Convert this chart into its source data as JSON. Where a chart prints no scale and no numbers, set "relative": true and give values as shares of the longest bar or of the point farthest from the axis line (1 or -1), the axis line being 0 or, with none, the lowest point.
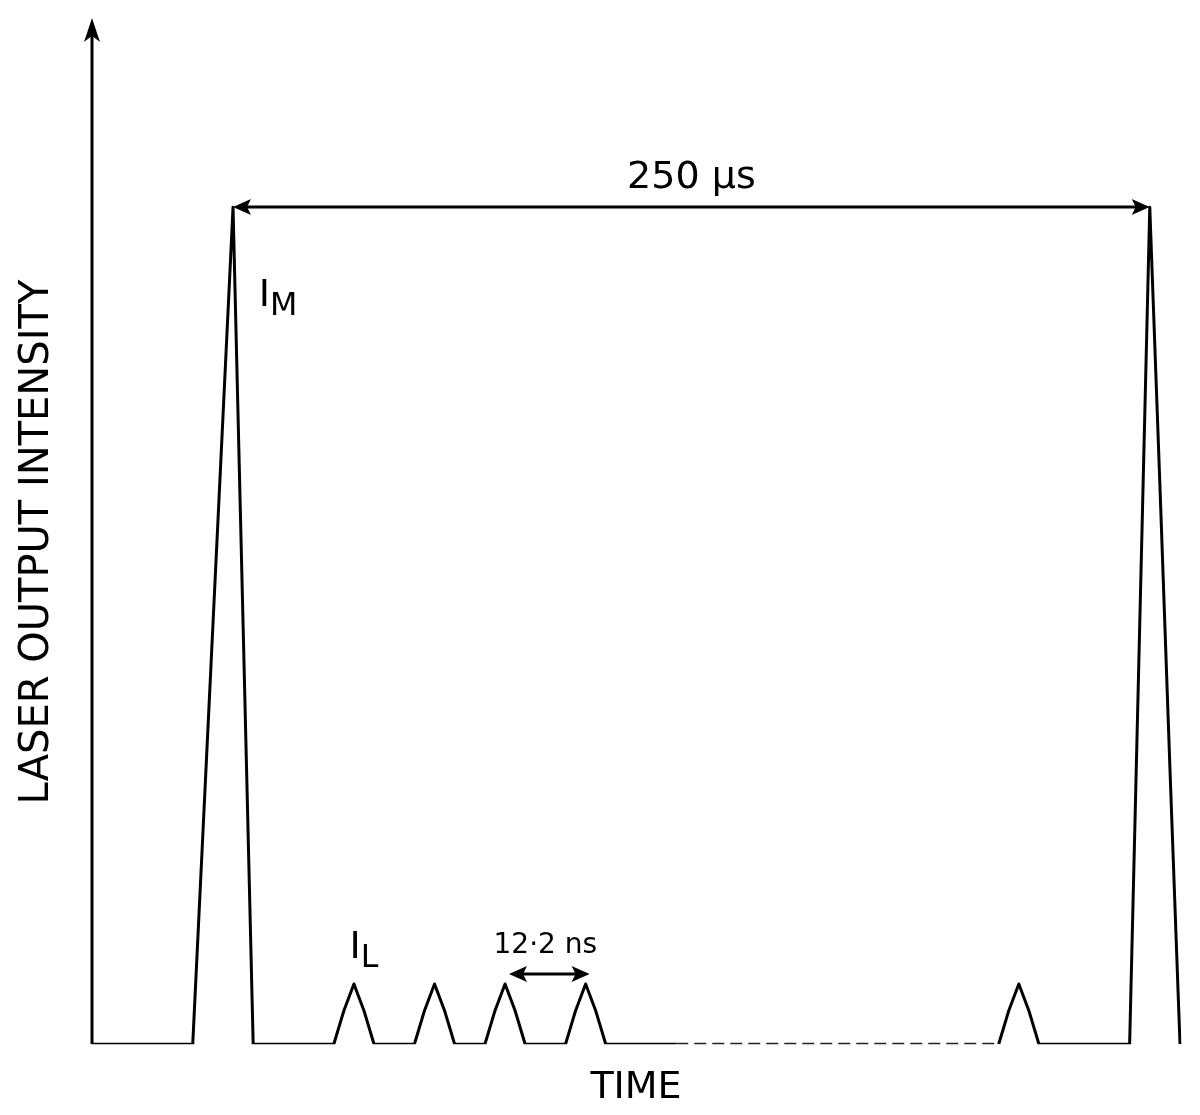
{
  "chart_data": {
    "type": "line",
    "relative": true,
    "xlabel": "TIME",
    "ylabel": "LASER OUTPUT INTENSITY",
    "categories": [
      null,
      null,
      null,
      null,
      null,
      null,
      null,
      null,
      null,
      null,
      null,
      null,
      null,
      null,
      null,
      null,
      null,
      null,
      null,
      null,
      null,
      null,
      null,
      null,
      null,
      null,
      null,
      null,
      null,
      null,
      null,
      null,
      null,
      null,
      null,
      null,
      null,
      null,
      null,
      null,
      null,
      null,
      null,
      null,
      null,
      null,
      null,
      null,
      null,
      null,
      null,
      null,
      null,
      null,
      null,
      null,
      null,
      null,
      null,
      null,
      null,
      null,
      null,
      null,
      null,
      null,
      null,
      null,
      null,
      null,
      null,
      null,
      null,
      null,
      null,
      null,
      null,
      null,
      null,
      null,
      null,
      null,
      null,
      null,
      null,
      null,
      null,
      null,
      null,
      null,
      null,
      null,
      null,
      null,
      null,
      null,
      null,
      null,
      null,
      null,
      null,
      null,
      null,
      null,
      null,
      null,
      null,
      null,
      null
    ],
    "series": [
      {
        "color": "#000000",
        "line_style": "solid",
        "values": [
          0,
          0,
          0,
          0,
          0,
          0,
          0,
          0,
          0,
          0,
          0,
          0.25,
          0.5,
          0.75,
          1,
          0.5,
          0,
          0,
          0,
          0,
          0,
          0,
          0,
          0,
          0,
          0.04,
          0.072,
          0.04,
          0,
          0,
          0,
          0,
          0,
          0.04,
          0.072,
          0.04,
          0,
          0,
          0,
          0,
          0.04,
          0.072,
          0.04,
          0,
          0,
          0,
          0,
          0,
          0.04,
          0.072,
          0.04,
          0,
          0,
          0,
          0,
          0,
          0,
          0,
          0,
          null,
          null,
          null,
          null,
          null,
          null,
          null,
          null,
          null,
          null,
          null,
          null,
          null,
          null,
          null,
          null,
          null,
          null,
          null,
          null,
          null,
          null,
          null,
          null,
          null,
          null,
          null,
          null,
          null,
          null,
          null,
          0,
          0.04,
          0.072,
          0.04,
          0,
          0,
          0,
          0,
          0,
          0,
          0,
          0,
          0,
          0,
          0.5,
          1,
          0.67,
          0.33,
          0
        ]
      },
      {
        "color": "#222222",
        "line_style": "dashed",
        "values": [
          null,
          null,
          null,
          null,
          null,
          null,
          null,
          null,
          null,
          null,
          null,
          null,
          null,
          null,
          null,
          null,
          null,
          null,
          null,
          null,
          null,
          null,
          null,
          null,
          null,
          null,
          null,
          null,
          null,
          null,
          null,
          null,
          null,
          null,
          null,
          null,
          null,
          null,
          null,
          null,
          null,
          null,
          null,
          null,
          null,
          null,
          null,
          null,
          null,
          null,
          null,
          null,
          null,
          null,
          null,
          null,
          null,
          null,
          0,
          0,
          0,
          0,
          0,
          0,
          0,
          0,
          0,
          0,
          0,
          0,
          0,
          0,
          0,
          0,
          0,
          0,
          0,
          0,
          0,
          0,
          0,
          0,
          0,
          0,
          0,
          0,
          0,
          0,
          0,
          0,
          0,
          null,
          null,
          null,
          null,
          null,
          null,
          null,
          null,
          null,
          null,
          null,
          null,
          null,
          null,
          null,
          null,
          null,
          null
        ]
      }
    ],
    "annotations": [
      "250 µs",
      "I$_{M}$",
      "I$_{L}$",
      "12·2 ns"
    ],
    "legend": false,
    "grid": false,
    "marker": "none"
  }
}
